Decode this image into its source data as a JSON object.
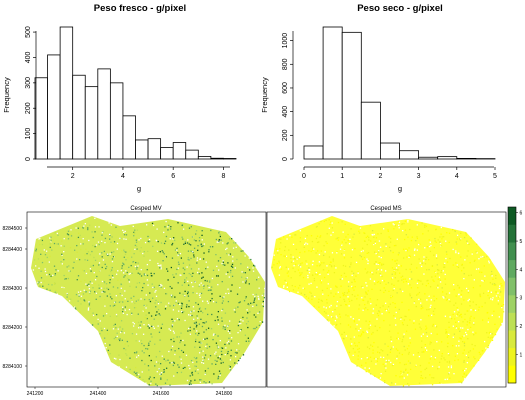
{
  "chart_data": [
    {
      "type": "bar",
      "title": "Peso fresco -  g/pixel",
      "xlabel": "g",
      "ylabel": "Frequency",
      "bin_edges": [
        0.5,
        1.0,
        1.5,
        2.0,
        2.5,
        3.0,
        3.5,
        4.0,
        4.5,
        5.0,
        5.5,
        6.0,
        6.5,
        7.0,
        7.5,
        8.0,
        8.5
      ],
      "values": [
        320,
        410,
        520,
        330,
        285,
        355,
        300,
        170,
        75,
        80,
        45,
        65,
        35,
        10,
        3,
        2
      ],
      "xticks": [
        "2",
        "4",
        "6",
        "8"
      ],
      "yticks": [
        "0",
        "100",
        "200",
        "300",
        "400",
        "500"
      ],
      "xlim": [
        0.5,
        8.5
      ],
      "ylim": [
        0,
        520
      ]
    },
    {
      "type": "bar",
      "title": "Peso seco -  g/pixel",
      "xlabel": "g",
      "ylabel": "Frequency",
      "bin_edges": [
        0.0,
        0.5,
        1.0,
        1.5,
        2.0,
        2.5,
        3.0,
        3.5,
        4.0,
        4.5,
        5.0
      ],
      "values": [
        110,
        1115,
        1070,
        480,
        135,
        70,
        15,
        20,
        5,
        3
      ],
      "xticks": [
        "0",
        "1",
        "2",
        "3",
        "4",
        "5"
      ],
      "yticks": [
        "0",
        "200",
        "400",
        "600",
        "800",
        "1000"
      ],
      "xlim": [
        0,
        5
      ],
      "ylim": [
        0,
        1115
      ]
    },
    {
      "type": "heatmap",
      "panels": [
        "Cesped MV",
        "Cesped MS"
      ],
      "x_ticks": [
        "241200",
        "241400",
        "241600",
        "241800"
      ],
      "y_ticks": [
        "8284100",
        "8284200",
        "8284300",
        "8284400",
        "8284500"
      ],
      "colorbar": {
        "ticks": [
          "1",
          "2",
          "3",
          "4",
          "5",
          "6"
        ],
        "range": [
          0,
          6.2
        ],
        "colors": [
          "#ffff00",
          "#eef41f",
          "#d8ea3d",
          "#bde055",
          "#9ed265",
          "#80c06a",
          "#5fa961",
          "#418f4f",
          "#257339",
          "#0e5a24"
        ]
      }
    }
  ]
}
